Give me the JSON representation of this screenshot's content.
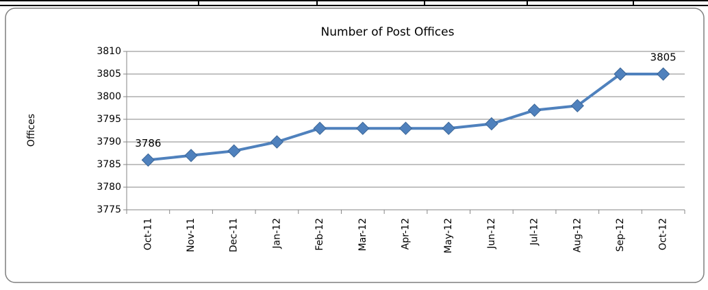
{
  "chart_data": {
    "type": "line",
    "title": "Number of Post Offices",
    "y_label": "Offices",
    "categories": [
      "Oct-11",
      "Nov-11",
      "Dec-11",
      "Jan-12",
      "Feb-12",
      "Mar-12",
      "Apr-12",
      "May-12",
      "Jun-12",
      "Jul-12",
      "Aug-12",
      "Sep-12",
      "Oct-12"
    ],
    "series": [
      {
        "name": "Offices",
        "color": "#4f81bd",
        "values": [
          3786,
          3787,
          3788,
          3790,
          3793,
          3793,
          3793,
          3793,
          3794,
          3797,
          3798,
          3805,
          3805
        ],
        "value_labels": [
          "3786",
          null,
          null,
          null,
          null,
          null,
          null,
          null,
          null,
          null,
          null,
          null,
          "3805"
        ]
      }
    ],
    "ylim": [
      3775,
      3810
    ],
    "yticks": [
      3775,
      3780,
      3785,
      3790,
      3795,
      3800,
      3805,
      3810
    ],
    "grid": true
  }
}
